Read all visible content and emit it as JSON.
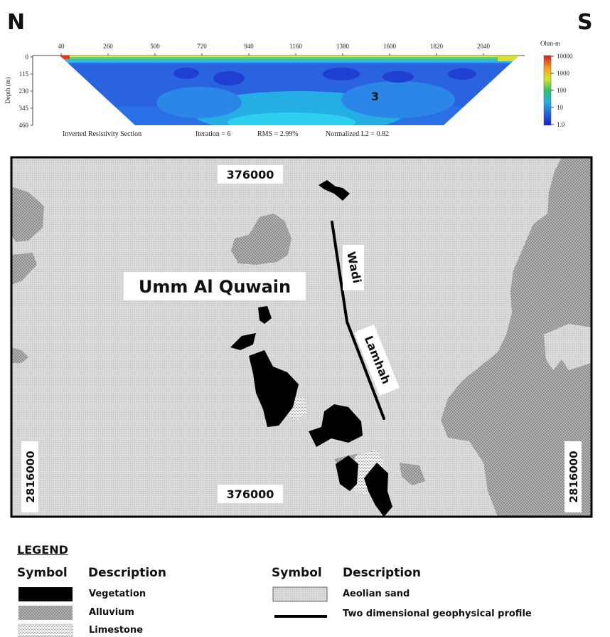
{
  "directions": {
    "north": "N",
    "south": "S"
  },
  "resistivity": {
    "x_ticks": [
      "40",
      "260",
      "500",
      "720",
      "940",
      "1160",
      "1380",
      "1600",
      "1820",
      "2040"
    ],
    "depth_ticks": [
      "0",
      "115",
      "230",
      "345",
      "460"
    ],
    "depth_axis_label": "Depth (m)",
    "scale_title": "Ohm-m",
    "scale_ticks": [
      "10000",
      "1000",
      "100",
      "10",
      "1.0"
    ],
    "scale_colors": [
      "#d81e1e",
      "#f29b1d",
      "#d9e62a",
      "#2fc06f",
      "#22b3e0",
      "#2463e2",
      "#1c1fc4"
    ],
    "marker": "3",
    "footer": {
      "section": "Inverted Resistivity Section",
      "iteration": "Iteration = 6",
      "rms": "RMS = 2.99%",
      "l2": "Normalized L2 = 0.82"
    }
  },
  "map": {
    "easting_top": "376000",
    "easting_bottom": "376000",
    "northing_left": "2816000",
    "northing_right": "2816000",
    "place_name": "Umm Al Quwain",
    "wadi_word1": "Wadi",
    "wadi_word2": "Lamhah"
  },
  "legend": {
    "title": "LEGEND",
    "left_symbol_header": "Symbol",
    "left_description_header": "Description",
    "right_symbol_header": "Symbol",
    "right_description_header": "Description",
    "vegetation": "Vegetation",
    "alluvium": "Alluvium",
    "limestone": "Limestone",
    "aeolian_sand": "Aeolian sand",
    "profile": "Two dimensional geophysical profile"
  },
  "colors": {
    "vegetation": "#000000",
    "alluvium": "#9a9a9a",
    "aeolian_sand": "#d7d7d7",
    "profile_line": "#000000"
  }
}
